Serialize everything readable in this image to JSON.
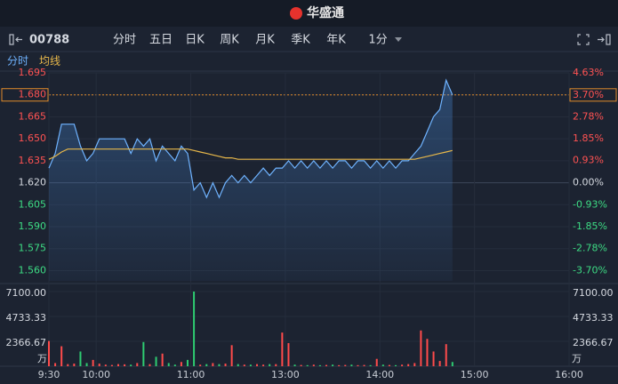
{
  "header": {
    "logo": "华盛通"
  },
  "toolbar": {
    "symbol": "00788",
    "tabs": [
      "分时",
      "五日",
      "日K",
      "周K",
      "月K",
      "季K",
      "年K",
      "1分"
    ]
  },
  "chart_data": {
    "type": "line",
    "x": [
      0,
      4,
      8,
      12,
      16,
      20,
      24,
      28,
      32,
      36,
      40,
      44,
      48,
      52,
      56,
      60,
      64,
      68,
      72,
      76,
      80,
      84,
      88,
      92,
      96,
      100,
      104,
      108,
      112,
      116,
      120,
      124,
      128,
      132,
      136,
      140,
      144,
      148,
      152,
      156,
      160,
      164,
      168,
      172,
      176,
      180,
      184,
      188,
      192,
      196,
      200,
      204,
      208,
      212,
      216,
      220,
      224,
      228,
      232,
      236,
      240,
      244,
      248,
      252,
      256
    ],
    "xlim": [
      0,
      330
    ],
    "xticks": [
      {
        "value": 0,
        "label": "9:30"
      },
      {
        "value": 30,
        "label": "10:00"
      },
      {
        "value": 90,
        "label": "11:00"
      },
      {
        "value": 150,
        "label": "13:00"
      },
      {
        "value": 210,
        "label": "14:00"
      },
      {
        "value": 270,
        "label": "15:00"
      },
      {
        "value": 330,
        "label": "16:00"
      }
    ],
    "ylim": [
      1.553,
      1.695
    ],
    "yticks": [
      {
        "value": 1.695,
        "label": "1.695"
      },
      {
        "value": 1.68,
        "label": "1.680"
      },
      {
        "value": 1.665,
        "label": "1.665"
      },
      {
        "value": 1.65,
        "label": "1.650"
      },
      {
        "value": 1.635,
        "label": "1.635"
      },
      {
        "value": 1.62,
        "label": "1.620"
      },
      {
        "value": 1.605,
        "label": "1.605"
      },
      {
        "value": 1.59,
        "label": "1.590"
      },
      {
        "value": 1.575,
        "label": "1.575"
      },
      {
        "value": 1.56,
        "label": "1.560"
      }
    ],
    "y2lim": [
      -4.14,
      4.63
    ],
    "y2ticks": [
      {
        "value": 4.63,
        "label": "4.63%"
      },
      {
        "value": 3.7,
        "label": "3.70%"
      },
      {
        "value": 2.78,
        "label": "2.78%"
      },
      {
        "value": 1.85,
        "label": "1.85%"
      },
      {
        "value": 0.93,
        "label": "0.93%"
      },
      {
        "value": 0,
        "label": "0.00%"
      },
      {
        "value": -0.93,
        "label": "-0.93%"
      },
      {
        "value": -1.85,
        "label": "-1.85%"
      },
      {
        "value": -2.78,
        "label": "-2.78%"
      },
      {
        "value": -3.7,
        "label": "-3.70%"
      }
    ],
    "series": [
      {
        "name": "分时",
        "color": "#6fb3ff",
        "values": [
          1.63,
          1.64,
          1.66,
          1.66,
          1.66,
          1.645,
          1.635,
          1.64,
          1.65,
          1.65,
          1.65,
          1.65,
          1.65,
          1.64,
          1.65,
          1.645,
          1.65,
          1.635,
          1.645,
          1.64,
          1.635,
          1.645,
          1.64,
          1.615,
          1.62,
          1.61,
          1.62,
          1.61,
          1.62,
          1.625,
          1.62,
          1.625,
          1.62,
          1.625,
          1.63,
          1.625,
          1.63,
          1.63,
          1.635,
          1.63,
          1.635,
          1.63,
          1.635,
          1.63,
          1.635,
          1.63,
          1.635,
          1.635,
          1.63,
          1.635,
          1.635,
          1.63,
          1.635,
          1.63,
          1.635,
          1.63,
          1.635,
          1.635,
          1.64,
          1.645,
          1.655,
          1.665,
          1.67,
          1.69,
          1.68
        ]
      },
      {
        "name": "均线",
        "color": "#e8b84a",
        "values": [
          1.636,
          1.638,
          1.641,
          1.643,
          1.643,
          1.643,
          1.643,
          1.643,
          1.643,
          1.643,
          1.643,
          1.643,
          1.643,
          1.643,
          1.643,
          1.643,
          1.643,
          1.643,
          1.643,
          1.643,
          1.643,
          1.643,
          1.643,
          1.642,
          1.641,
          1.64,
          1.639,
          1.638,
          1.637,
          1.637,
          1.636,
          1.636,
          1.636,
          1.636,
          1.636,
          1.636,
          1.636,
          1.636,
          1.636,
          1.636,
          1.636,
          1.636,
          1.636,
          1.636,
          1.636,
          1.636,
          1.636,
          1.636,
          1.636,
          1.636,
          1.636,
          1.636,
          1.636,
          1.636,
          1.636,
          1.636,
          1.636,
          1.636,
          1.636,
          1.637,
          1.638,
          1.639,
          1.64,
          1.641,
          1.642
        ]
      }
    ],
    "volume": {
      "values": [
        2400,
        300,
        1900,
        200,
        250,
        1400,
        300,
        600,
        250,
        150,
        120,
        200,
        180,
        150,
        300,
        2300,
        200,
        900,
        1200,
        300,
        150,
        400,
        600,
        7100,
        150,
        200,
        300,
        200,
        250,
        2000,
        200,
        150,
        150,
        200,
        150,
        200,
        200,
        3200,
        2200,
        150,
        120,
        100,
        150,
        100,
        120,
        150,
        100,
        120,
        150,
        100,
        120,
        100,
        700,
        150,
        120,
        100,
        150,
        200,
        300,
        3400,
        2600,
        1400,
        500,
        2100,
        400
      ],
      "ylim": [
        0,
        7100
      ],
      "yticks": [
        {
          "value": 7100,
          "label": "7100.00"
        },
        {
          "value": 4733.33,
          "label": "4733.33"
        },
        {
          "value": 2366.67,
          "label": "2366.67"
        }
      ],
      "unit": "万",
      "up_color": "#ff4b4b",
      "down_color": "#2ecc71"
    },
    "up_color": "#ff5252",
    "down_color": "#3ddc84",
    "grid": true
  }
}
